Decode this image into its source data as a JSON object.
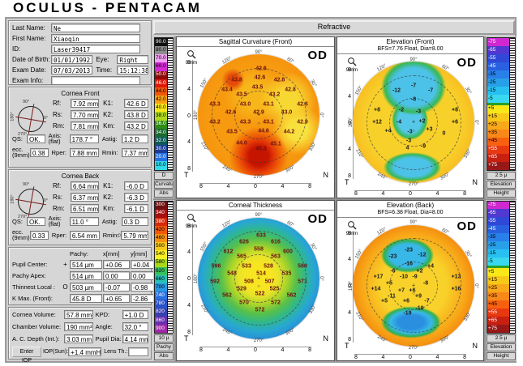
{
  "title": "OCULUS  -  PENTACAM",
  "refractive_button": "Refractive",
  "diagram_labels": {
    "top": "90°",
    "bottom": "270°",
    "left": "180°",
    "right": "0°"
  },
  "patient": {
    "last_name_label": "Last Name:",
    "last_name": "Ne",
    "first_name_label": "First Name:",
    "first_name": "Xiaoqin",
    "id_label": "ID:",
    "id": "Laser39417",
    "dob_label": "Date of Birth:",
    "dob": "01/01/1992",
    "eye_label": "Eye:",
    "eye": "Right",
    "exam_date_label": "Exam Date:",
    "exam_date": "07/03/2013",
    "time_label": "Time:",
    "time": "15:12:38",
    "exam_info_label": "Exam Info:",
    "exam_info": ""
  },
  "cornea_front": {
    "title": "Cornea Front",
    "rows": [
      {
        "l1": "Rf:",
        "v1": "7.92 mm",
        "l2": "K1:",
        "v2": "42.6 D"
      },
      {
        "l1": "Rs:",
        "v1": "7.70 mm",
        "l2": "K2:",
        "v2": "43.8 D"
      },
      {
        "l1": "Rm:",
        "v1": "7.81 mm",
        "l2": "Km:",
        "v2": "43.2 D"
      }
    ],
    "qs_label": "QS:",
    "qs": "OK.",
    "axis_label": "Axis: (flat)",
    "axis": "178.7 °",
    "astig_label": "Astig:",
    "astig": "1.2 D",
    "ecc_label": "ecc. (9mm)",
    "ecc": "0.38",
    "rper_label": "Rper:",
    "rper": "7.88 mm",
    "rmin_label": "Rmin:",
    "rmin_marker": "",
    "rmin": "7.37 mm"
  },
  "cornea_back": {
    "title": "Cornea Back",
    "rows": [
      {
        "l1": "Rf:",
        "v1": "6.64 mm",
        "l2": "K1:",
        "v2": "-6.0 D"
      },
      {
        "l1": "Rs:",
        "v1": "6.37 mm",
        "l2": "K2:",
        "v2": "-6.3 D"
      },
      {
        "l1": "Rm:",
        "v1": "6.51 mm",
        "l2": "Km:",
        "v2": "-6.1 D"
      }
    ],
    "qs_label": "QS:",
    "qs": "OK.",
    "axis_label": "Axis: (flat)",
    "axis": "11.0 °",
    "astig_label": "Astig:",
    "astig": "0.3 D",
    "ecc_label": "ecc. (9mm)",
    "ecc": "0.33",
    "rper_label": "Rper:",
    "rper": "6.54 mm",
    "rmin_label": "Rmin:",
    "rmin_marker": "◇",
    "rmin": "5.79 mm"
  },
  "pachy_panel": {
    "col_pachy": "Pachy:",
    "col_x": "x[mm]",
    "col_y": "y[mm]",
    "rows": [
      {
        "label": "Pupil Center:",
        "marker": "+",
        "pachy": "514 µm",
        "x": "+0.06",
        "y": "+0.04"
      },
      {
        "label": "Pachy Apex:",
        "marker": "",
        "pachy": "514 µm",
        "x": "0.00",
        "y": "0.00"
      },
      {
        "label": "Thinnest Local :",
        "marker": "O",
        "pachy": "503 µm",
        "x": "-0.07",
        "y": "-0.98"
      },
      {
        "label": "K Max. (Front):",
        "marker": "",
        "pachy": "45.8 D",
        "x": "+0.65",
        "y": "-2.86"
      }
    ]
  },
  "volume_panel": {
    "rows": [
      {
        "l1": "Cornea Volume:",
        "v1": "57.8 mm³",
        "l2": "KPD:",
        "v2": "+1.0 D"
      },
      {
        "l1": "Chamber Volume:",
        "v1": "190 mm³",
        "l2": "Angle:",
        "v2": "32.0 °"
      },
      {
        "l1": "A. C. Depth (Int.):",
        "v1": "3.03 mm",
        "l2": "Pupil Dia:",
        "v2": "4.14 mm"
      }
    ],
    "enter_iop_button": "Enter IOP",
    "iop_label": "IOP(Sun):",
    "iop": "+1.4 mmHg",
    "lens_label": "Lens Th.:",
    "lens": ""
  },
  "maps": [
    {
      "title": "Sagittal Curvature (Front)",
      "subtitle": "",
      "eye": "OD",
      "zoom_label": "9mm",
      "temporal": "T",
      "nasal": "N",
      "angles": [
        "90°",
        "120°",
        "150°",
        "180°",
        "210°",
        "240°",
        "270°",
        "300°",
        "330°",
        "0°",
        "30°",
        "60°"
      ],
      "axis": [
        "8",
        "4",
        "0",
        "4",
        "8"
      ],
      "points": [
        {
          "v": "42.6",
          "x": 52,
          "y": 12
        },
        {
          "v": "43.8",
          "x": 32,
          "y": 21
        },
        {
          "v": "42.6",
          "x": 51,
          "y": 19
        },
        {
          "v": "42.8",
          "x": 67,
          "y": 21
        },
        {
          "v": "43.4",
          "x": 24,
          "y": 29
        },
        {
          "v": "43.5",
          "x": 49,
          "y": 27
        },
        {
          "v": "42.8",
          "x": 76,
          "y": 29
        },
        {
          "v": "43.5",
          "x": 36,
          "y": 33
        },
        {
          "v": "43.2",
          "x": 63,
          "y": 33
        },
        {
          "v": "43.3",
          "x": 14,
          "y": 41
        },
        {
          "v": "43.0",
          "x": 39,
          "y": 41
        },
        {
          "v": "43.1",
          "x": 58,
          "y": 41
        },
        {
          "v": "42.6",
          "x": 86,
          "y": 41
        },
        {
          "v": "42.6",
          "x": 27,
          "y": 48
        },
        {
          "v": "42.9",
          "x": 50,
          "y": 48
        },
        {
          "v": "43.0",
          "x": 73,
          "y": 48
        },
        {
          "v": "43.2",
          "x": 14,
          "y": 56
        },
        {
          "v": "43.3",
          "x": 39,
          "y": 56
        },
        {
          "v": "43.1",
          "x": 58,
          "y": 56
        },
        {
          "v": "42.9",
          "x": 86,
          "y": 56
        },
        {
          "v": "43.5",
          "x": 28,
          "y": 64
        },
        {
          "v": "44.6",
          "x": 54,
          "y": 63
        },
        {
          "v": "44.2",
          "x": 75,
          "y": 64
        },
        {
          "v": "44.0",
          "x": 36,
          "y": 73
        },
        {
          "v": "45.3",
          "x": 52,
          "y": 78
        },
        {
          "v": "45.1",
          "x": 64,
          "y": 74
        }
      ]
    },
    {
      "title": "Elevation (Front)",
      "subtitle": "BFS=7.76 Float, Dia=8.00",
      "eye": "OD",
      "zoom_label": "9mm",
      "temporal": "T",
      "nasal": "N",
      "angles": [
        "90°",
        "120°",
        "150°",
        "180°",
        "210°",
        "240°",
        "270°",
        "300°",
        "330°",
        "0°",
        "30°",
        "60°"
      ],
      "axis": [
        "8",
        "4",
        "0",
        "4",
        "8"
      ],
      "points": [
        {
          "v": "-12",
          "x": 36,
          "y": 24
        },
        {
          "v": "-7",
          "x": 50,
          "y": 20
        },
        {
          "v": "-7",
          "x": 64,
          "y": 24
        },
        {
          "v": "-8",
          "x": 50,
          "y": 31
        },
        {
          "v": "+8",
          "x": 20,
          "y": 40
        },
        {
          "v": "-2",
          "x": 40,
          "y": 40
        },
        {
          "v": "-3",
          "x": 54,
          "y": 41
        },
        {
          "v": "+8",
          "x": 84,
          "y": 40
        },
        {
          "v": "+12",
          "x": 20,
          "y": 50
        },
        {
          "v": "-4",
          "x": 38,
          "y": 50
        },
        {
          "v": "+2",
          "x": 57,
          "y": 49
        },
        {
          "v": "+6",
          "x": 84,
          "y": 50
        },
        {
          "v": "+4",
          "x": 29,
          "y": 57
        },
        {
          "v": "-3",
          "x": 47,
          "y": 58
        },
        {
          "v": "+3",
          "x": 63,
          "y": 56
        },
        {
          "v": "0",
          "x": 75,
          "y": 59
        },
        {
          "v": "-3",
          "x": 46,
          "y": 65
        },
        {
          "v": "4",
          "x": 45,
          "y": 71
        },
        {
          "v": "-9",
          "x": 58,
          "y": 70
        }
      ]
    },
    {
      "title": "Corneal Thickness",
      "subtitle": "",
      "eye": "OD",
      "zoom_label": "9mm",
      "temporal": "T",
      "nasal": "N",
      "angles": [
        "90°",
        "120°",
        "150°",
        "180°",
        "210°",
        "240°",
        "270°",
        "300°",
        "330°",
        "0°",
        "30°",
        "60°"
      ],
      "axis": [
        "8",
        "4",
        "0",
        "4",
        "8"
      ],
      "points": [
        {
          "v": "633",
          "x": 52,
          "y": 15
        },
        {
          "v": "626",
          "x": 38,
          "y": 20
        },
        {
          "v": "616",
          "x": 64,
          "y": 20
        },
        {
          "v": "612",
          "x": 25,
          "y": 28
        },
        {
          "v": "558",
          "x": 50,
          "y": 26
        },
        {
          "v": "600",
          "x": 74,
          "y": 28
        },
        {
          "v": "565",
          "x": 36,
          "y": 32
        },
        {
          "v": "563",
          "x": 64,
          "y": 32
        },
        {
          "v": "596",
          "x": 15,
          "y": 40
        },
        {
          "v": "533",
          "x": 40,
          "y": 40
        },
        {
          "v": "528",
          "x": 58,
          "y": 40
        },
        {
          "v": "588",
          "x": 86,
          "y": 40
        },
        {
          "v": "548",
          "x": 28,
          "y": 46
        },
        {
          "v": "514",
          "x": 52,
          "y": 46
        },
        {
          "v": "535",
          "x": 73,
          "y": 46
        },
        {
          "v": "592",
          "x": 14,
          "y": 53
        },
        {
          "v": "508",
          "x": 42,
          "y": 53
        },
        {
          "v": "507",
          "x": 59,
          "y": 53
        },
        {
          "v": "571",
          "x": 86,
          "y": 53
        },
        {
          "v": "529",
          "x": 36,
          "y": 59
        },
        {
          "v": "525",
          "x": 63,
          "y": 59
        },
        {
          "v": "562",
          "x": 24,
          "y": 64
        },
        {
          "v": "522",
          "x": 51,
          "y": 63
        },
        {
          "v": "562",
          "x": 77,
          "y": 64
        },
        {
          "v": "570",
          "x": 38,
          "y": 70
        },
        {
          "v": "572",
          "x": 64,
          "y": 70
        },
        {
          "v": "572",
          "x": 51,
          "y": 76
        }
      ]
    },
    {
      "title": "Elevation (Back)",
      "subtitle": "BFS=6.38 Float, Dia=8.00",
      "eye": "OD",
      "zoom_label": "9mm",
      "temporal": "T",
      "nasal": "N",
      "angles": [
        "90°",
        "120°",
        "150°",
        "180°",
        "210°",
        "240°",
        "270°",
        "300°",
        "330°",
        "0°",
        "30°",
        "60°"
      ],
      "axis": [
        "8",
        "4",
        "0",
        "4",
        "8"
      ],
      "points": [
        {
          "v": "-23",
          "x": 33,
          "y": 26
        },
        {
          "v": "-23",
          "x": 46,
          "y": 21
        },
        {
          "v": "-12",
          "x": 57,
          "y": 25
        },
        {
          "v": "-16",
          "x": 46,
          "y": 32
        },
        {
          "v": "+4",
          "x": 64,
          "y": 34
        },
        {
          "v": "-6",
          "x": 33,
          "y": 38
        },
        {
          "v": "+2",
          "x": 55,
          "y": 38
        },
        {
          "v": "+17",
          "x": 21,
          "y": 43
        },
        {
          "v": "-10",
          "x": 42,
          "y": 43
        },
        {
          "v": "-9",
          "x": 51,
          "y": 43
        },
        {
          "v": "+13",
          "x": 85,
          "y": 43
        },
        {
          "v": "+5",
          "x": 30,
          "y": 48
        },
        {
          "v": "-8",
          "x": 60,
          "y": 48
        },
        {
          "v": "+14",
          "x": 19,
          "y": 53
        },
        {
          "v": "+7",
          "x": 40,
          "y": 54
        },
        {
          "v": "+6",
          "x": 49,
          "y": 54
        },
        {
          "v": "+16",
          "x": 85,
          "y": 53
        },
        {
          "v": "-11",
          "x": 32,
          "y": 59
        },
        {
          "v": "+9",
          "x": 54,
          "y": 59
        },
        {
          "v": "+5",
          "x": 26,
          "y": 63
        },
        {
          "v": "+6",
          "x": 44,
          "y": 63
        },
        {
          "v": "-7",
          "x": 61,
          "y": 63
        },
        {
          "v": "-19",
          "x": 55,
          "y": 69
        },
        {
          "v": "-19",
          "x": 45,
          "y": 73
        }
      ]
    }
  ],
  "scales": {
    "curvature": {
      "unit": "D",
      "name": "Curvature",
      "mode": "Abs",
      "cells": [
        {
          "label": "90.0",
          "color": "#101010"
        },
        {
          "label": "80.0",
          "color": "#8c8c8c"
        },
        {
          "label": "70.0",
          "color": "#f0a0f0"
        },
        {
          "label": "60.0",
          "color": "#d428d4"
        },
        {
          "label": "50.0",
          "color": "#8c0a0a"
        },
        {
          "label": "46.0",
          "color": "#e01808"
        },
        {
          "label": "44.0",
          "color": "#f05808"
        },
        {
          "label": "42.0",
          "color": "#f8a010"
        },
        {
          "label": "40.0",
          "color": "#f8e818"
        },
        {
          "label": "38.0",
          "color": "#b0d818"
        },
        {
          "label": "36.0",
          "color": "#2f8c12"
        },
        {
          "label": "34.0",
          "color": "#1a6a30"
        },
        {
          "label": "32.0",
          "color": "#0c5a56"
        },
        {
          "label": "30.0",
          "color": "#1a3c96"
        },
        {
          "label": "20.0",
          "color": "#2470e0"
        },
        {
          "label": "10.0",
          "color": "#30d8e8"
        }
      ]
    },
    "pachy": {
      "unit": "10 µ",
      "name": "Pachy",
      "mode": "Abs",
      "cells": [
        {
          "label": "300",
          "color": "#701010"
        },
        {
          "label": "340",
          "color": "#a81010"
        },
        {
          "label": "380",
          "color": "#d82808"
        },
        {
          "label": "420",
          "color": "#f05808"
        },
        {
          "label": "460",
          "color": "#f89010"
        },
        {
          "label": "500",
          "color": "#f8c818"
        },
        {
          "label": "540",
          "color": "#f8f020"
        },
        {
          "label": "580",
          "color": "#a8d818"
        },
        {
          "label": "620",
          "color": "#38c060"
        },
        {
          "label": "660",
          "color": "#28c0b8"
        },
        {
          "label": "700",
          "color": "#2898e0"
        },
        {
          "label": "740",
          "color": "#2870e0"
        },
        {
          "label": "780",
          "color": "#2850c8"
        },
        {
          "label": "820",
          "color": "#3840b0"
        },
        {
          "label": "860",
          "color": "#6830b0"
        },
        {
          "label": "900",
          "color": "#a028a8"
        }
      ]
    },
    "elevation": {
      "unit": "2.5 µ",
      "name": "Elevation",
      "mode": "Height",
      "cells": [
        {
          "label": "-75",
          "color": "#d028d0"
        },
        {
          "label": "-65",
          "color": "#5038d0"
        },
        {
          "label": "-55",
          "color": "#3048d8"
        },
        {
          "label": "-45",
          "color": "#2860e0"
        },
        {
          "label": "-35",
          "color": "#2880e8"
        },
        {
          "label": "-25",
          "color": "#28a0e8"
        },
        {
          "label": "-15",
          "color": "#28c0f0"
        },
        {
          "label": "-5",
          "color": "#38d8f0"
        },
        {
          "label": "",
          "color": "#28a028",
          "thin": true
        },
        {
          "label": "+5",
          "color": "#f8e818"
        },
        {
          "label": "+15",
          "color": "#f8c818"
        },
        {
          "label": "+25",
          "color": "#f8a818"
        },
        {
          "label": "+35",
          "color": "#f88818"
        },
        {
          "label": "+45",
          "color": "#f86010"
        },
        {
          "label": "+55",
          "color": "#e83810"
        },
        {
          "label": "+65",
          "color": "#c82010"
        },
        {
          "label": "+75",
          "color": "#981818"
        }
      ]
    }
  }
}
